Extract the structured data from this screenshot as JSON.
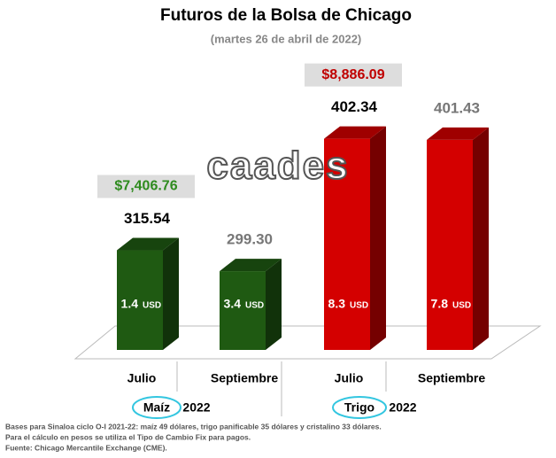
{
  "chart_data": {
    "type": "bar3d",
    "title": "Futuros de la Bolsa de Chicago",
    "subtitle": "(martes 26 de abril de 2022)",
    "watermark": "caades",
    "categories": [
      "Julio",
      "Septiembre",
      "Julio",
      "Septiembre"
    ],
    "values": [
      315.54,
      299.3,
      402.34,
      401.43
    ],
    "value_labels": [
      "315.54",
      "299.30",
      "402.34",
      "401.43"
    ],
    "value_label_colors": [
      "#000000",
      "#777777",
      "#000000",
      "#777777"
    ],
    "colors": [
      "#1f5a12",
      "#1f5a12",
      "#d40000",
      "#d40000"
    ],
    "changes": [
      1.4,
      3.4,
      8.3,
      7.8
    ],
    "change_unit": "USD",
    "peso_prices": [
      {
        "value": 7406.76,
        "label": "$7,406.76"
      },
      null,
      {
        "value": 8886.09,
        "label": "$8,886.09"
      },
      null
    ],
    "peso_colors": [
      "#2e8b1e",
      null,
      "#c00000",
      null
    ],
    "groups": [
      {
        "name": "Maíz",
        "year": "2022"
      },
      {
        "name": "Trigo",
        "year": "2022"
      }
    ],
    "ylim": [
      238,
      420
    ],
    "notes": [
      "Bases para Sinaloa ciclo O-I 2021-22: maíz 49 dólares, trigo panificable 35 dólares y cristalino 33 dólares.",
      "Para el cálculo en pesos se utiliza el Tipo de Cambio Fix para pagos.",
      "Fuente: Chicago Mercantile Exchange (CME)."
    ]
  }
}
